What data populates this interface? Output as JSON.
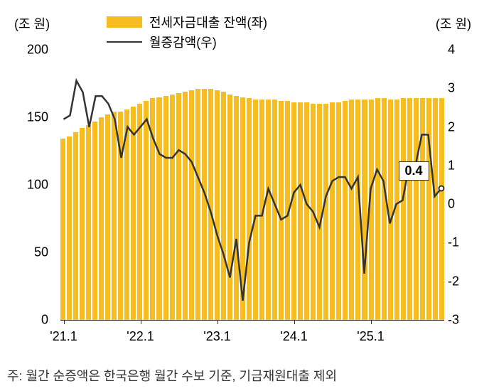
{
  "chart": {
    "type": "combo-bar-line",
    "y_unit_label": "(조 원)",
    "legend": {
      "bar_label": "전세자금대출 잔액(좌)",
      "line_label": "월증감액(우)"
    },
    "left_axis": {
      "min": 0,
      "max": 200,
      "step": 50,
      "ticks": [
        0,
        50,
        100,
        150,
        200
      ]
    },
    "right_axis": {
      "min": -3,
      "max": 4,
      "step": 1,
      "ticks": [
        -3,
        -2,
        -1,
        0,
        1,
        2,
        3,
        4
      ]
    },
    "x_labels": [
      "'21.1",
      "'22.1",
      "'23.1",
      "'24.1",
      "'25.1"
    ],
    "bar_color": "#f5bd1f",
    "line_color": "#333333",
    "line_width": 2.5,
    "background_color": "#ffffff",
    "bars": [
      134,
      136,
      139,
      142,
      144,
      147,
      150,
      152,
      154,
      154,
      156,
      158,
      160,
      162,
      164,
      165,
      166,
      167,
      168,
      169,
      170,
      171,
      171,
      171,
      170,
      169,
      167,
      166,
      165,
      164,
      163,
      163,
      163,
      163,
      162,
      162,
      161,
      161,
      161,
      160,
      160,
      160,
      161,
      161,
      162,
      163,
      163,
      163,
      163,
      164,
      164,
      163,
      163,
      164,
      164,
      164,
      164,
      164,
      164,
      164
    ],
    "line": [
      2.2,
      2.3,
      3.2,
      2.9,
      2.0,
      2.8,
      2.8,
      2.6,
      2.2,
      1.2,
      2.0,
      1.8,
      2.0,
      2.2,
      1.7,
      1.3,
      1.2,
      1.2,
      1.4,
      1.3,
      1.1,
      0.7,
      0.3,
      -0.2,
      -0.8,
      -1.3,
      -1.9,
      -0.9,
      -2.5,
      -1.0,
      -0.3,
      -0.3,
      0.4,
      0.0,
      -0.4,
      -0.3,
      0.3,
      0.5,
      0.0,
      -0.2,
      -0.6,
      0.2,
      0.6,
      0.7,
      0.7,
      0.4,
      0.7,
      -1.8,
      0.4,
      0.9,
      0.6,
      -0.5,
      0.0,
      0.1,
      1.0,
      1.0,
      1.8,
      1.8,
      0.2,
      0.4
    ],
    "callout": {
      "label": "0.4",
      "x_index": 59,
      "y_value": 0.4
    },
    "footnote": "주: 월간 순증액은 한국은행 월간 수보 기준, 기금재원대출 제외"
  }
}
